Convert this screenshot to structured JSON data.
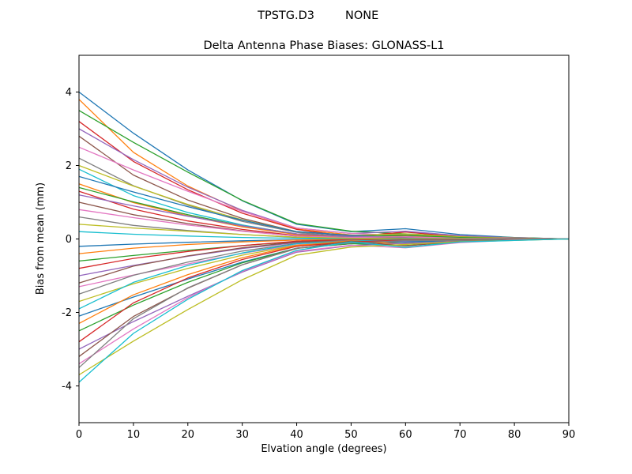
{
  "header": {
    "left_title": "TPSTG.D3",
    "right_title": "NONE"
  },
  "chart_data": {
    "type": "line",
    "title": "Delta Antenna Phase Biases: GLONASS-L1",
    "xlabel": "Elvation angle (degrees)",
    "ylabel": "Bias from mean (mm)",
    "xlim": [
      0,
      90
    ],
    "ylim": [
      -5,
      5
    ],
    "xticks": [
      0,
      10,
      20,
      30,
      40,
      50,
      60,
      70,
      80,
      90
    ],
    "yticks": [
      -4,
      -2,
      0,
      2,
      4
    ],
    "grid": false,
    "legend": null,
    "background": "#ffffff",
    "spine_color": "#000000",
    "palette": [
      "#1f77b4",
      "#ff7f0e",
      "#2ca02c",
      "#d62728",
      "#9467bd",
      "#8c564b",
      "#e377c2",
      "#7f7f7f",
      "#bcbd22",
      "#17becf"
    ],
    "x": [
      0,
      10,
      20,
      30,
      40,
      50,
      60,
      70,
      80,
      90
    ],
    "series": [
      {
        "values": [
          4.0,
          2.88,
          1.88,
          1.04,
          0.4,
          0.2,
          0.28,
          0.12,
          0.04,
          0.0
        ]
      },
      {
        "values": [
          3.8,
          2.36,
          1.44,
          0.76,
          0.27,
          0.11,
          0.04,
          0.04,
          0.0,
          0.0
        ]
      },
      {
        "values": [
          3.5,
          2.63,
          1.82,
          1.05,
          0.42,
          0.21,
          0.14,
          0.07,
          0.04,
          0.0
        ]
      },
      {
        "values": [
          3.2,
          2.11,
          1.34,
          0.7,
          0.26,
          0.06,
          0.19,
          0.06,
          0.03,
          0.0
        ]
      },
      {
        "values": [
          3.0,
          2.16,
          1.41,
          0.78,
          0.3,
          0.15,
          0.21,
          0.09,
          0.03,
          0.0
        ]
      },
      {
        "values": [
          2.8,
          1.74,
          1.06,
          0.56,
          0.2,
          0.08,
          0.03,
          0.03,
          0.0,
          0.0
        ]
      },
      {
        "values": [
          2.5,
          1.88,
          1.3,
          0.75,
          0.3,
          0.15,
          0.1,
          0.05,
          0.03,
          0.0
        ]
      },
      {
        "values": [
          2.2,
          1.45,
          0.92,
          0.48,
          0.18,
          0.04,
          0.13,
          0.04,
          0.02,
          0.0
        ]
      },
      {
        "values": [
          2.0,
          1.44,
          0.94,
          0.52,
          0.2,
          0.1,
          0.14,
          0.06,
          0.02,
          0.0
        ]
      },
      {
        "values": [
          1.9,
          1.18,
          0.72,
          0.38,
          0.13,
          0.06,
          0.02,
          0.02,
          0.0,
          0.0
        ]
      },
      {
        "values": [
          1.7,
          1.28,
          0.88,
          0.51,
          0.2,
          0.1,
          0.07,
          0.03,
          0.02,
          0.0
        ]
      },
      {
        "values": [
          1.5,
          0.99,
          0.63,
          0.33,
          0.12,
          0.03,
          0.09,
          0.03,
          0.02,
          0.0
        ]
      },
      {
        "values": [
          1.4,
          1.01,
          0.66,
          0.36,
          0.14,
          0.07,
          0.1,
          0.04,
          0.01,
          0.0
        ]
      },
      {
        "values": [
          1.3,
          0.81,
          0.49,
          0.26,
          0.09,
          0.04,
          0.01,
          0.01,
          0.0,
          0.0
        ]
      },
      {
        "values": [
          1.2,
          0.9,
          0.62,
          0.36,
          0.14,
          0.07,
          0.05,
          0.02,
          0.01,
          0.0
        ]
      },
      {
        "values": [
          1.0,
          0.66,
          0.42,
          0.22,
          0.08,
          0.02,
          0.06,
          0.02,
          0.01,
          0.0
        ]
      },
      {
        "values": [
          0.8,
          0.58,
          0.38,
          0.21,
          0.08,
          0.04,
          0.06,
          0.02,
          0.01,
          0.0
        ]
      },
      {
        "values": [
          0.6,
          0.37,
          0.23,
          0.12,
          0.04,
          0.02,
          0.01,
          0.01,
          0.0,
          0.0
        ]
      },
      {
        "values": [
          0.4,
          0.3,
          0.21,
          0.12,
          0.05,
          0.02,
          0.02,
          0.01,
          0.0,
          0.0
        ]
      },
      {
        "values": [
          0.2,
          0.13,
          0.08,
          0.04,
          0.02,
          0.0,
          0.01,
          0.0,
          0.0,
          0.0
        ]
      },
      {
        "values": [
          -0.2,
          -0.14,
          -0.09,
          -0.05,
          -0.02,
          -0.01,
          -0.01,
          -0.01,
          0.0,
          0.0
        ]
      },
      {
        "values": [
          -0.4,
          -0.25,
          -0.15,
          -0.08,
          -0.03,
          -0.01,
          0.0,
          0.0,
          0.0,
          0.0
        ]
      },
      {
        "values": [
          -0.6,
          -0.45,
          -0.31,
          -0.18,
          -0.07,
          -0.04,
          -0.02,
          -0.01,
          -0.01,
          0.0
        ]
      },
      {
        "values": [
          -0.8,
          -0.53,
          -0.34,
          -0.18,
          -0.06,
          -0.02,
          -0.05,
          -0.02,
          -0.01,
          0.0
        ]
      },
      {
        "values": [
          -1.0,
          -0.72,
          -0.47,
          -0.26,
          -0.1,
          -0.05,
          -0.07,
          -0.03,
          -0.01,
          0.0
        ]
      },
      {
        "values": [
          -1.2,
          -0.74,
          -0.46,
          -0.24,
          -0.08,
          -0.04,
          -0.01,
          -0.01,
          0.0,
          0.0
        ]
      },
      {
        "values": [
          -1.3,
          -0.98,
          -0.68,
          -0.39,
          -0.16,
          -0.08,
          -0.05,
          -0.03,
          -0.01,
          0.0
        ]
      },
      {
        "values": [
          -1.5,
          -0.99,
          -0.63,
          -0.33,
          -0.12,
          -0.03,
          -0.09,
          -0.03,
          -0.02,
          0.0
        ]
      },
      {
        "values": [
          -1.7,
          -1.22,
          -0.8,
          -0.44,
          -0.17,
          -0.09,
          -0.12,
          -0.05,
          -0.02,
          0.0
        ]
      },
      {
        "values": [
          -1.9,
          -1.18,
          -0.72,
          -0.38,
          -0.13,
          -0.06,
          -0.02,
          -0.02,
          0.0,
          0.0
        ]
      },
      {
        "values": [
          -2.1,
          -1.58,
          -1.09,
          -0.63,
          -0.25,
          -0.13,
          -0.08,
          -0.04,
          -0.02,
          0.0
        ]
      },
      {
        "values": [
          -2.3,
          -1.52,
          -0.97,
          -0.51,
          -0.18,
          -0.05,
          -0.14,
          -0.05,
          -0.02,
          0.0
        ]
      },
      {
        "values": [
          -2.5,
          -1.8,
          -1.18,
          -0.65,
          -0.25,
          -0.13,
          -0.18,
          -0.08,
          -0.03,
          0.0
        ]
      },
      {
        "values": [
          -2.8,
          -1.74,
          -1.06,
          -0.56,
          -0.2,
          -0.08,
          -0.03,
          -0.03,
          0.0,
          0.0
        ]
      },
      {
        "values": [
          -3.0,
          -2.25,
          -1.56,
          -0.9,
          -0.36,
          -0.18,
          -0.12,
          -0.06,
          -0.03,
          0.0
        ]
      },
      {
        "values": [
          -3.2,
          -2.11,
          -1.34,
          -0.7,
          -0.26,
          -0.06,
          -0.19,
          -0.06,
          -0.03,
          0.0
        ]
      },
      {
        "values": [
          -3.4,
          -2.45,
          -1.6,
          -0.88,
          -0.34,
          -0.17,
          -0.24,
          -0.1,
          -0.03,
          0.0
        ]
      },
      {
        "values": [
          -3.5,
          -2.17,
          -1.33,
          -0.7,
          -0.25,
          -0.11,
          -0.04,
          -0.04,
          0.0,
          0.0
        ]
      },
      {
        "values": [
          -3.7,
          -2.78,
          -1.92,
          -1.11,
          -0.44,
          -0.22,
          -0.15,
          -0.07,
          -0.04,
          0.0
        ]
      },
      {
        "values": [
          -3.9,
          -2.57,
          -1.64,
          -0.86,
          -0.31,
          -0.08,
          -0.23,
          -0.08,
          -0.04,
          0.0
        ]
      }
    ]
  }
}
